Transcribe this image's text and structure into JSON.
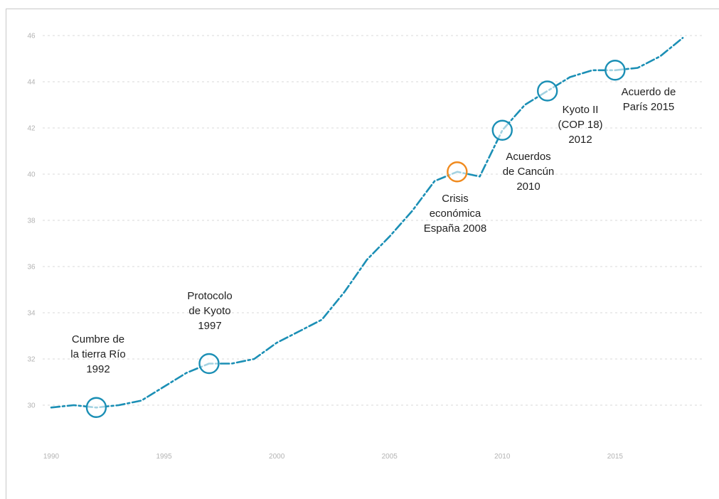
{
  "chart_data": {
    "type": "line",
    "title": "",
    "xlabel": "",
    "ylabel": "",
    "xlim": [
      1990,
      2018
    ],
    "ylim": [
      29,
      46.5
    ],
    "grid": "horizontal-dashed",
    "x_ticks": [
      1990,
      1995,
      2000,
      2005,
      2010,
      2015
    ],
    "y_ticks": [
      30,
      32,
      34,
      36,
      38,
      40,
      42,
      44,
      46
    ],
    "line_color": "#1b8fb5",
    "series": [
      {
        "x": [
          1990,
          1991,
          1992,
          1993,
          1994,
          1995,
          1996,
          1997,
          1998,
          1999,
          2000,
          2001,
          2002,
          2003,
          2004,
          2005,
          2006,
          2007,
          2008,
          2009,
          2010,
          2011,
          2012,
          2013,
          2014,
          2015,
          2016,
          2017,
          2018
        ],
        "y": [
          29.9,
          30.0,
          29.9,
          30.0,
          30.2,
          30.8,
          31.4,
          31.8,
          31.8,
          32.0,
          32.7,
          33.2,
          33.7,
          34.9,
          36.3,
          37.3,
          38.4,
          39.7,
          40.1,
          39.9,
          41.9,
          43.0,
          43.6,
          44.2,
          44.5,
          44.5,
          44.6,
          45.1,
          45.9
        ]
      }
    ],
    "annotations": [
      {
        "id": "rio",
        "x": 1992,
        "y": 29.9,
        "color": "#1b8fb5",
        "lines": [
          "Cumbre de",
          "la tierra Río",
          "1992"
        ]
      },
      {
        "id": "kyoto",
        "x": 1997,
        "y": 31.8,
        "color": "#1b8fb5",
        "lines": [
          "Protocolo",
          "de Kyoto",
          "1997"
        ]
      },
      {
        "id": "crisis",
        "x": 2008,
        "y": 40.1,
        "color": "#f08a1e",
        "lines": [
          "Crisis",
          "económica",
          "España 2008"
        ]
      },
      {
        "id": "cancun",
        "x": 2010,
        "y": 41.9,
        "color": "#1b8fb5",
        "lines": [
          "Acuerdos",
          "de Cancún",
          "2010"
        ]
      },
      {
        "id": "kyoto2",
        "x": 2012,
        "y": 43.6,
        "color": "#1b8fb5",
        "lines": [
          "Kyoto II",
          "(COP 18)",
          "2012"
        ]
      },
      {
        "id": "paris",
        "x": 2015,
        "y": 44.5,
        "color": "#1b8fb5",
        "lines": [
          "Acuerdo de",
          "París 2015"
        ]
      }
    ]
  }
}
